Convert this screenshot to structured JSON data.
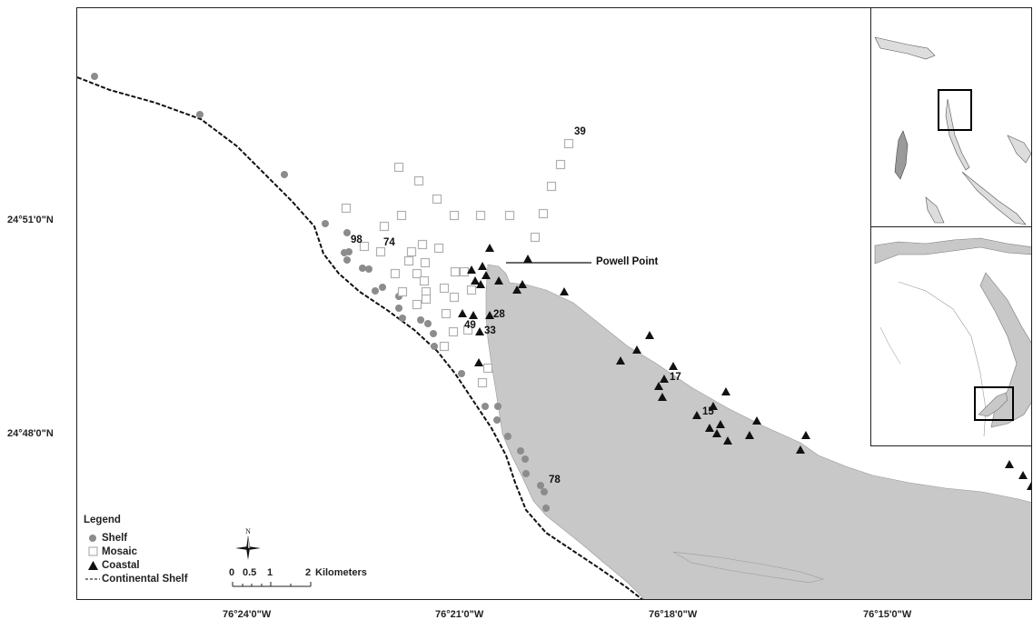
{
  "axes": {
    "latitude_labels": [
      "24°51'0\"N",
      "24°48'0\"N"
    ],
    "longitude_labels": [
      "76°24'0\"W",
      "76°21'0\"W",
      "76°18'0\"W",
      "76°15'0\"W"
    ]
  },
  "labels": {
    "powell_point": "Powell Point",
    "site_39": "39",
    "site_98": "98",
    "site_74": "74",
    "site_28": "28",
    "site_49": "49",
    "site_33": "33",
    "site_17": "17",
    "site_15": "15",
    "site_78": "78"
  },
  "legend": {
    "title": "Legend",
    "items": [
      {
        "label": "Shelf",
        "symbol": "circle"
      },
      {
        "label": "Mosaic",
        "symbol": "square"
      },
      {
        "label": "Coastal",
        "symbol": "triangle"
      },
      {
        "label": "Continental Shelf",
        "symbol": "dashed-line"
      }
    ]
  },
  "scale_bar": {
    "ticks": [
      "0",
      "0.5",
      "1",
      "2"
    ],
    "unit": "Kilometers"
  },
  "north_arrow": {
    "letter": "N"
  },
  "colors": {
    "land": "#c8c8c8",
    "shelf_marker": "#8c8c8c",
    "mosaic_marker": "#b0b0b0",
    "coastal_marker": "#111111"
  }
}
